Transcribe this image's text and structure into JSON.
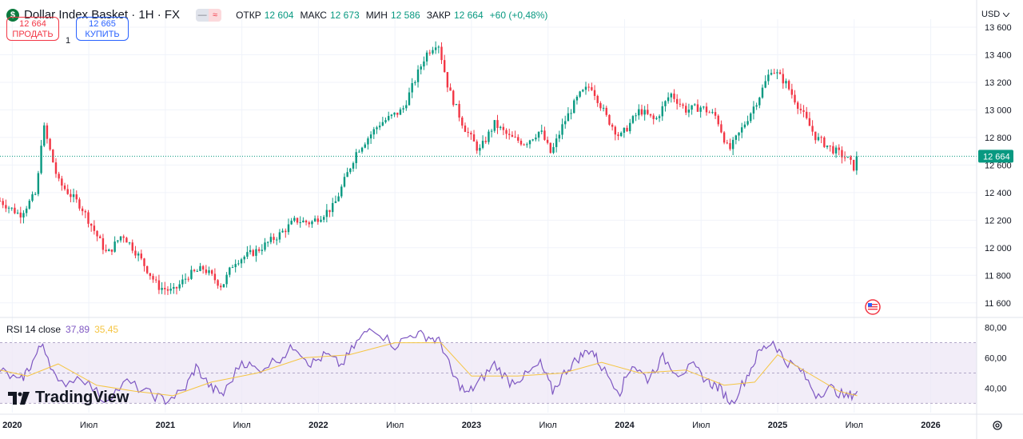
{
  "header": {
    "symbol_icon": "$",
    "symbol": "Dollar Index Basket · 1Н · FX",
    "pill_a": "≈",
    "open_label": "ОТКР",
    "open": "12 604",
    "high_label": "МАКС",
    "high": "12 673",
    "low_label": "МИН",
    "low": "12 586",
    "close_label": "ЗАКР",
    "close": "12 664",
    "change": "+60 (+0,48%)"
  },
  "trade": {
    "sell_price": "12 664",
    "sell_label": "ПРОДАТЬ",
    "qty": "1",
    "buy_price": "12 665",
    "buy_label": "КУПИТЬ"
  },
  "currency": {
    "label": "USD",
    "icon": "chevron-down-icon"
  },
  "rsi": {
    "label": "RSI 14 close",
    "value": "37,89",
    "ma_value": "35,45"
  },
  "brand": {
    "name": "TradingView"
  },
  "colors": {
    "up": "#089981",
    "down": "#f23645",
    "rsi": "#7e57c2",
    "rsi_ma": "#f5c542",
    "price_line": "#089981"
  },
  "chart_data": [
    {
      "type": "candlestick",
      "title": "Dollar Index Basket · 1Н · FX",
      "x_ticks": [
        "2020",
        "Июл",
        "2021",
        "Июл",
        "2022",
        "Июл",
        "2023",
        "Июл",
        "2024",
        "Июл",
        "2025",
        "Июл",
        "2026"
      ],
      "x_tick_dates": [
        2020.0,
        2020.5,
        2021.0,
        2021.5,
        2022.0,
        2022.5,
        2023.0,
        2023.5,
        2024.0,
        2024.5,
        2025.0,
        2025.5,
        2026.0
      ],
      "x_range": [
        2019.92,
        2026.3
      ],
      "y_ticks": [
        "13 600",
        "13 400",
        "13 200",
        "13 000",
        "12 800",
        "12 600",
        "12 400",
        "12 200",
        "12 000",
        "11 800",
        "11 600"
      ],
      "y_tick_values": [
        13600,
        13400,
        13200,
        13000,
        12800,
        12600,
        12400,
        12200,
        12000,
        11800,
        11600
      ],
      "ylim": [
        11500,
        13600
      ],
      "last_price": 12664,
      "last_price_label": "12 664",
      "key_points": [
        {
          "x": 2019.92,
          "y": 12340
        },
        {
          "x": 2020.05,
          "y": 12240
        },
        {
          "x": 2020.16,
          "y": 12400
        },
        {
          "x": 2020.2,
          "y": 12900
        },
        {
          "x": 2020.3,
          "y": 12480
        },
        {
          "x": 2020.45,
          "y": 12300
        },
        {
          "x": 2020.62,
          "y": 11950
        },
        {
          "x": 2020.72,
          "y": 12100
        },
        {
          "x": 2020.82,
          "y": 11950
        },
        {
          "x": 2020.95,
          "y": 11720
        },
        {
          "x": 2021.05,
          "y": 11680
        },
        {
          "x": 2021.15,
          "y": 11800
        },
        {
          "x": 2021.25,
          "y": 11850
        },
        {
          "x": 2021.37,
          "y": 11720
        },
        {
          "x": 2021.45,
          "y": 11900
        },
        {
          "x": 2021.6,
          "y": 11980
        },
        {
          "x": 2021.75,
          "y": 12100
        },
        {
          "x": 2021.85,
          "y": 12200
        },
        {
          "x": 2021.95,
          "y": 12180
        },
        {
          "x": 2022.1,
          "y": 12300
        },
        {
          "x": 2022.25,
          "y": 12700
        },
        {
          "x": 2022.4,
          "y": 12900
        },
        {
          "x": 2022.55,
          "y": 13000
        },
        {
          "x": 2022.7,
          "y": 13400
        },
        {
          "x": 2022.78,
          "y": 13500
        },
        {
          "x": 2022.85,
          "y": 13150
        },
        {
          "x": 2022.95,
          "y": 12880
        },
        {
          "x": 2023.05,
          "y": 12700
        },
        {
          "x": 2023.15,
          "y": 12900
        },
        {
          "x": 2023.25,
          "y": 12800
        },
        {
          "x": 2023.35,
          "y": 12760
        },
        {
          "x": 2023.45,
          "y": 12850
        },
        {
          "x": 2023.52,
          "y": 12680
        },
        {
          "x": 2023.6,
          "y": 12900
        },
        {
          "x": 2023.7,
          "y": 13100
        },
        {
          "x": 2023.78,
          "y": 13180
        },
        {
          "x": 2023.88,
          "y": 12950
        },
        {
          "x": 2023.97,
          "y": 12800
        },
        {
          "x": 2024.1,
          "y": 13000
        },
        {
          "x": 2024.2,
          "y": 12920
        },
        {
          "x": 2024.3,
          "y": 13120
        },
        {
          "x": 2024.4,
          "y": 13000
        },
        {
          "x": 2024.5,
          "y": 13020
        },
        {
          "x": 2024.6,
          "y": 12950
        },
        {
          "x": 2024.68,
          "y": 12700
        },
        {
          "x": 2024.76,
          "y": 12850
        },
        {
          "x": 2024.88,
          "y": 13100
        },
        {
          "x": 2024.96,
          "y": 13300
        },
        {
          "x": 2025.05,
          "y": 13200
        },
        {
          "x": 2025.15,
          "y": 13000
        },
        {
          "x": 2025.25,
          "y": 12800
        },
        {
          "x": 2025.35,
          "y": 12720
        },
        {
          "x": 2025.45,
          "y": 12650
        },
        {
          "x": 2025.5,
          "y": 12580
        },
        {
          "x": 2025.52,
          "y": 12664
        }
      ]
    },
    {
      "type": "line",
      "title": "RSI 14 close",
      "y_ticks": [
        "80,00",
        "60,00",
        "40,00"
      ],
      "y_tick_values": [
        80,
        60,
        40
      ],
      "ylim": [
        26,
        84
      ],
      "bands": [
        30,
        50,
        70
      ],
      "series": [
        {
          "name": "RSI",
          "color": "#7e57c2",
          "points": [
            {
              "x": 2019.92,
              "y": 52
            },
            {
              "x": 2020.05,
              "y": 44
            },
            {
              "x": 2020.12,
              "y": 55
            },
            {
              "x": 2020.2,
              "y": 70
            },
            {
              "x": 2020.3,
              "y": 42
            },
            {
              "x": 2020.45,
              "y": 48
            },
            {
              "x": 2020.6,
              "y": 32
            },
            {
              "x": 2020.75,
              "y": 44
            },
            {
              "x": 2020.9,
              "y": 36
            },
            {
              "x": 2021.0,
              "y": 32
            },
            {
              "x": 2021.12,
              "y": 38
            },
            {
              "x": 2021.2,
              "y": 54
            },
            {
              "x": 2021.3,
              "y": 40
            },
            {
              "x": 2021.38,
              "y": 36
            },
            {
              "x": 2021.5,
              "y": 58
            },
            {
              "x": 2021.6,
              "y": 52
            },
            {
              "x": 2021.75,
              "y": 60
            },
            {
              "x": 2021.85,
              "y": 68
            },
            {
              "x": 2021.95,
              "y": 56
            },
            {
              "x": 2022.05,
              "y": 62
            },
            {
              "x": 2022.15,
              "y": 55
            },
            {
              "x": 2022.25,
              "y": 70
            },
            {
              "x": 2022.35,
              "y": 81
            },
            {
              "x": 2022.5,
              "y": 68
            },
            {
              "x": 2022.62,
              "y": 76
            },
            {
              "x": 2022.72,
              "y": 74
            },
            {
              "x": 2022.8,
              "y": 70
            },
            {
              "x": 2022.88,
              "y": 48
            },
            {
              "x": 2022.97,
              "y": 36
            },
            {
              "x": 2023.05,
              "y": 44
            },
            {
              "x": 2023.15,
              "y": 56
            },
            {
              "x": 2023.25,
              "y": 44
            },
            {
              "x": 2023.35,
              "y": 48
            },
            {
              "x": 2023.45,
              "y": 56
            },
            {
              "x": 2023.53,
              "y": 38
            },
            {
              "x": 2023.62,
              "y": 52
            },
            {
              "x": 2023.7,
              "y": 60
            },
            {
              "x": 2023.78,
              "y": 66
            },
            {
              "x": 2023.85,
              "y": 54
            },
            {
              "x": 2023.97,
              "y": 38
            },
            {
              "x": 2024.05,
              "y": 56
            },
            {
              "x": 2024.15,
              "y": 46
            },
            {
              "x": 2024.25,
              "y": 60
            },
            {
              "x": 2024.35,
              "y": 50
            },
            {
              "x": 2024.45,
              "y": 54
            },
            {
              "x": 2024.55,
              "y": 44
            },
            {
              "x": 2024.62,
              "y": 40
            },
            {
              "x": 2024.7,
              "y": 30
            },
            {
              "x": 2024.8,
              "y": 48
            },
            {
              "x": 2024.88,
              "y": 64
            },
            {
              "x": 2024.97,
              "y": 71
            },
            {
              "x": 2025.05,
              "y": 58
            },
            {
              "x": 2025.15,
              "y": 52
            },
            {
              "x": 2025.25,
              "y": 36
            },
            {
              "x": 2025.35,
              "y": 40
            },
            {
              "x": 2025.45,
              "y": 34
            },
            {
              "x": 2025.52,
              "y": 38
            }
          ]
        },
        {
          "name": "RSI MA",
          "color": "#f5c542",
          "points": [
            {
              "x": 2019.92,
              "y": 52
            },
            {
              "x": 2020.1,
              "y": 48
            },
            {
              "x": 2020.3,
              "y": 56
            },
            {
              "x": 2020.55,
              "y": 42
            },
            {
              "x": 2020.8,
              "y": 38
            },
            {
              "x": 2021.05,
              "y": 35
            },
            {
              "x": 2021.3,
              "y": 44
            },
            {
              "x": 2021.6,
              "y": 50
            },
            {
              "x": 2021.9,
              "y": 60
            },
            {
              "x": 2022.2,
              "y": 62
            },
            {
              "x": 2022.5,
              "y": 70
            },
            {
              "x": 2022.8,
              "y": 70
            },
            {
              "x": 2023.0,
              "y": 48
            },
            {
              "x": 2023.3,
              "y": 48
            },
            {
              "x": 2023.6,
              "y": 50
            },
            {
              "x": 2023.85,
              "y": 57
            },
            {
              "x": 2024.1,
              "y": 50
            },
            {
              "x": 2024.4,
              "y": 52
            },
            {
              "x": 2024.65,
              "y": 42
            },
            {
              "x": 2024.85,
              "y": 44
            },
            {
              "x": 2025.0,
              "y": 62
            },
            {
              "x": 2025.2,
              "y": 50
            },
            {
              "x": 2025.4,
              "y": 38
            },
            {
              "x": 2025.52,
              "y": 35
            }
          ]
        }
      ]
    }
  ]
}
